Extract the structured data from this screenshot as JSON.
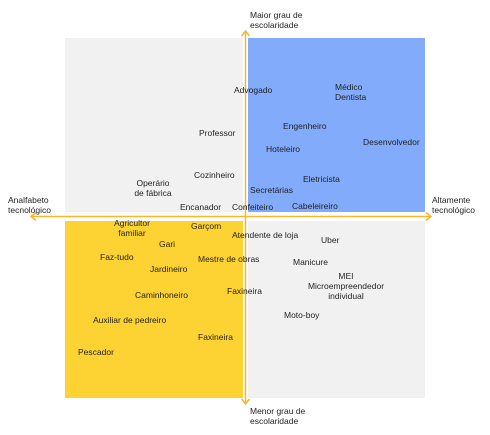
{
  "axes": {
    "top": "Maior grau de\nescolaridade",
    "bottom": "Menor grau de\nescolaridade",
    "left": "Analfabeto\ntecnológico",
    "right": "Altamente\ntecnológico",
    "color": "#f4b92a"
  },
  "quadrant_colors": {
    "top_left": "#f1f1f1",
    "top_right": "#82acfb",
    "bottom_left": "#fdd333",
    "bottom_right": "#f1f1f1"
  },
  "professions": {
    "advogado": "Advogado",
    "medico_dentista": "Médico\nDentista",
    "professor": "Professor",
    "engenheiro": "Engenheiro",
    "desenvolvedor": "Desenvolvedor",
    "hoteleiro": "Hoteleiro",
    "cozinheiro": "Cozinheiro",
    "operario_fabrica": "Operário\nde fábrica",
    "eletricista": "Eletricista",
    "secretarias": "Secretárias",
    "encanador": "Encanador",
    "confeiteiro": "Confeiteiro",
    "cabeleireiro": "Cabeleireiro",
    "agricultor_familiar": "Agricultor\nfamiliar",
    "garcom": "Garçom",
    "atendente_loja": "Atendente de loja",
    "uber": "Uber",
    "gari": "Gari",
    "faz_tudo": "Faz-tudo",
    "mestre_obras": "Mestre de obras",
    "manicure": "Manicure",
    "jardineiro": "Jardineiro",
    "mei": "MEI\nMicroempreendedor\nindividual",
    "faxineira_1": "Faxineira",
    "caminhoneiro": "Caminhoneiro",
    "moto_boy": "Moto-boy",
    "auxiliar_pedreiro": "Auxiliar de pedreiro",
    "faxineira_2": "Faxineira",
    "pescador": "Pescador"
  }
}
